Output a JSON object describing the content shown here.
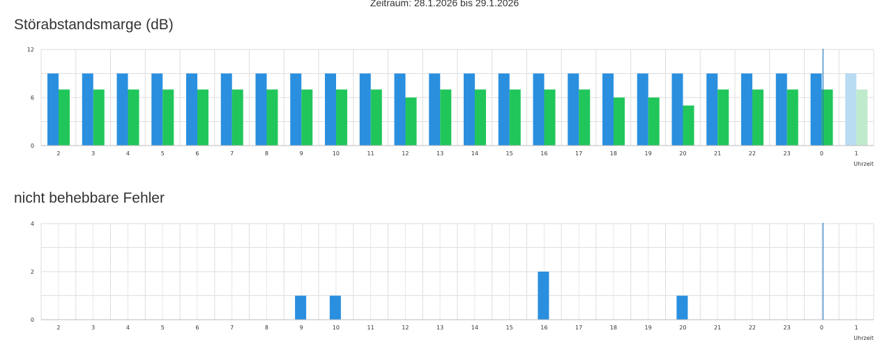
{
  "period_label": "Zeitraum: 28.1.2026 bis 29.1.2026",
  "colors": {
    "blue": "#2a8fdf",
    "green": "#21c65b",
    "blue_faded": "#b9dcf3",
    "green_faded": "#bfeacc",
    "grid": "#dddddd",
    "now_line": "#2b7dc0"
  },
  "chart_data": [
    {
      "type": "bar",
      "title": "Störabstandsmarge (dB)",
      "xlabel": "Uhrzeit",
      "ylabel": "",
      "ylim": [
        0,
        12
      ],
      "yticks": [
        0,
        6,
        12
      ],
      "grid": true,
      "categories": [
        "2",
        "3",
        "4",
        "5",
        "6",
        "7",
        "8",
        "9",
        "10",
        "11",
        "12",
        "13",
        "14",
        "15",
        "16",
        "17",
        "18",
        "19",
        "20",
        "21",
        "22",
        "23",
        "0",
        "1"
      ],
      "series": [
        {
          "color": "#2a8fdf",
          "values": [
            9,
            9,
            9,
            9,
            9,
            9,
            9,
            9,
            9,
            9,
            9,
            9,
            9,
            9,
            9,
            9,
            9,
            9,
            9,
            9,
            9,
            9,
            9,
            9
          ]
        },
        {
          "color": "#21c65b",
          "values": [
            7,
            7,
            7,
            7,
            7,
            7,
            7,
            7,
            7,
            7,
            6,
            7,
            7,
            7,
            7,
            7,
            6,
            6,
            5,
            7,
            7,
            7,
            7,
            7
          ]
        }
      ],
      "faded_categories": [
        "1"
      ],
      "now_marker_at": "0"
    },
    {
      "type": "bar",
      "title": "nicht behebbare Fehler",
      "xlabel": "Uhrzeit",
      "ylabel": "",
      "ylim": [
        0,
        4
      ],
      "yticks": [
        0,
        2,
        4
      ],
      "grid": true,
      "categories": [
        "2",
        "3",
        "4",
        "5",
        "6",
        "7",
        "8",
        "9",
        "10",
        "11",
        "12",
        "13",
        "14",
        "15",
        "16",
        "17",
        "18",
        "19",
        "20",
        "21",
        "22",
        "23",
        "0",
        "1"
      ],
      "series": [
        {
          "color": "#2a8fdf",
          "values": [
            0,
            0,
            0,
            0,
            0,
            0,
            0,
            1,
            1,
            0,
            0,
            0,
            0,
            0,
            2,
            0,
            0,
            0,
            1,
            0,
            0,
            0,
            0,
            0
          ]
        }
      ],
      "faded_categories": [],
      "now_marker_at": "0"
    }
  ]
}
